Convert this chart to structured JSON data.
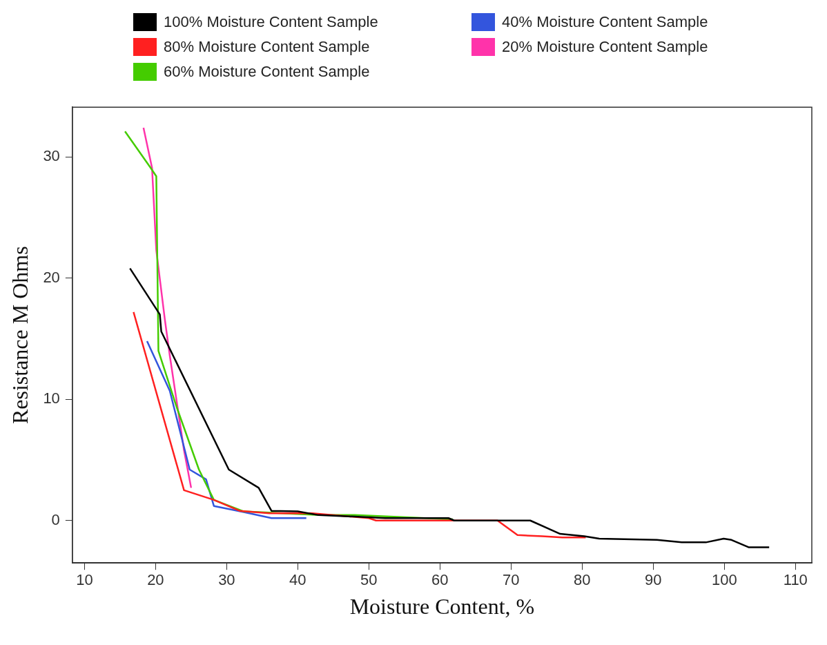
{
  "chart_data": {
    "type": "line",
    "xlabel": "Moisture Content, %",
    "ylabel": "Resistance M Ohms",
    "xlim": [
      8.3,
      112.3
    ],
    "ylim": [
      -3.5,
      34.1
    ],
    "xticks": [
      10,
      20,
      30,
      40,
      50,
      60,
      70,
      80,
      90,
      100,
      110
    ],
    "yticks": [
      0,
      10,
      20,
      30
    ],
    "grid": false,
    "legend": "top",
    "marker": "none",
    "line_style": "solid",
    "series": [
      {
        "name": "100% Moisture Content Sample",
        "color": "#000000",
        "x": [
          16.4,
          20.6,
          20.8,
          30.3,
          34.5,
          36.3,
          40,
          42.9,
          48.9,
          52.3,
          61.2,
          62,
          72.7,
          76.9,
          80.3,
          82.4,
          90.5,
          94,
          97.4,
          99.9,
          101,
          103.4,
          106.3
        ],
        "values": [
          20.8,
          17,
          15.6,
          4.2,
          2.7,
          0.8,
          0.75,
          0.45,
          0.3,
          0.2,
          0.2,
          0,
          0,
          -1.1,
          -1.3,
          -1.5,
          -1.6,
          -1.8,
          -1.8,
          -1.5,
          -1.6,
          -2.2,
          -2.2
        ]
      },
      {
        "name": "80% Moisture Content Sample",
        "color": "#ff2020",
        "x": [
          16.9,
          24,
          28.2,
          31.8,
          36,
          42,
          50,
          51,
          56.2,
          62.2,
          68.1,
          70.9,
          74.4,
          77.2,
          80.5
        ],
        "values": [
          17.2,
          2.5,
          1.7,
          0.8,
          0.6,
          0.6,
          0.2,
          0,
          0,
          0,
          0,
          -1.2,
          -1.3,
          -1.4,
          -1.4
        ]
      },
      {
        "name": "60% Moisture Content Sample",
        "color": "#44cc00",
        "x": [
          15.7,
          19.3,
          20.1,
          20.4,
          23,
          26.1,
          28.2,
          32.4,
          43,
          48,
          61.8
        ],
        "values": [
          32.1,
          29.1,
          28.4,
          14,
          9.3,
          4.2,
          1.7,
          0.75,
          0.45,
          0.45,
          0.1
        ]
      },
      {
        "name": "40% Moisture Content Sample",
        "color": "#3355dd",
        "x": [
          18.8,
          22,
          24.8,
          27.1,
          28.2,
          32.4,
          36.3,
          41.2
        ],
        "values": [
          14.8,
          10.7,
          4.2,
          3.4,
          1.2,
          0.7,
          0.2,
          0.2
        ]
      },
      {
        "name": "20% Moisture Content Sample",
        "color": "#ff33aa",
        "x": [
          18.3,
          19.5,
          20.1,
          21.3,
          22,
          24,
          25
        ],
        "values": [
          32.4,
          29.1,
          22.3,
          16.6,
          13.6,
          5.8,
          2.7
        ]
      }
    ]
  }
}
